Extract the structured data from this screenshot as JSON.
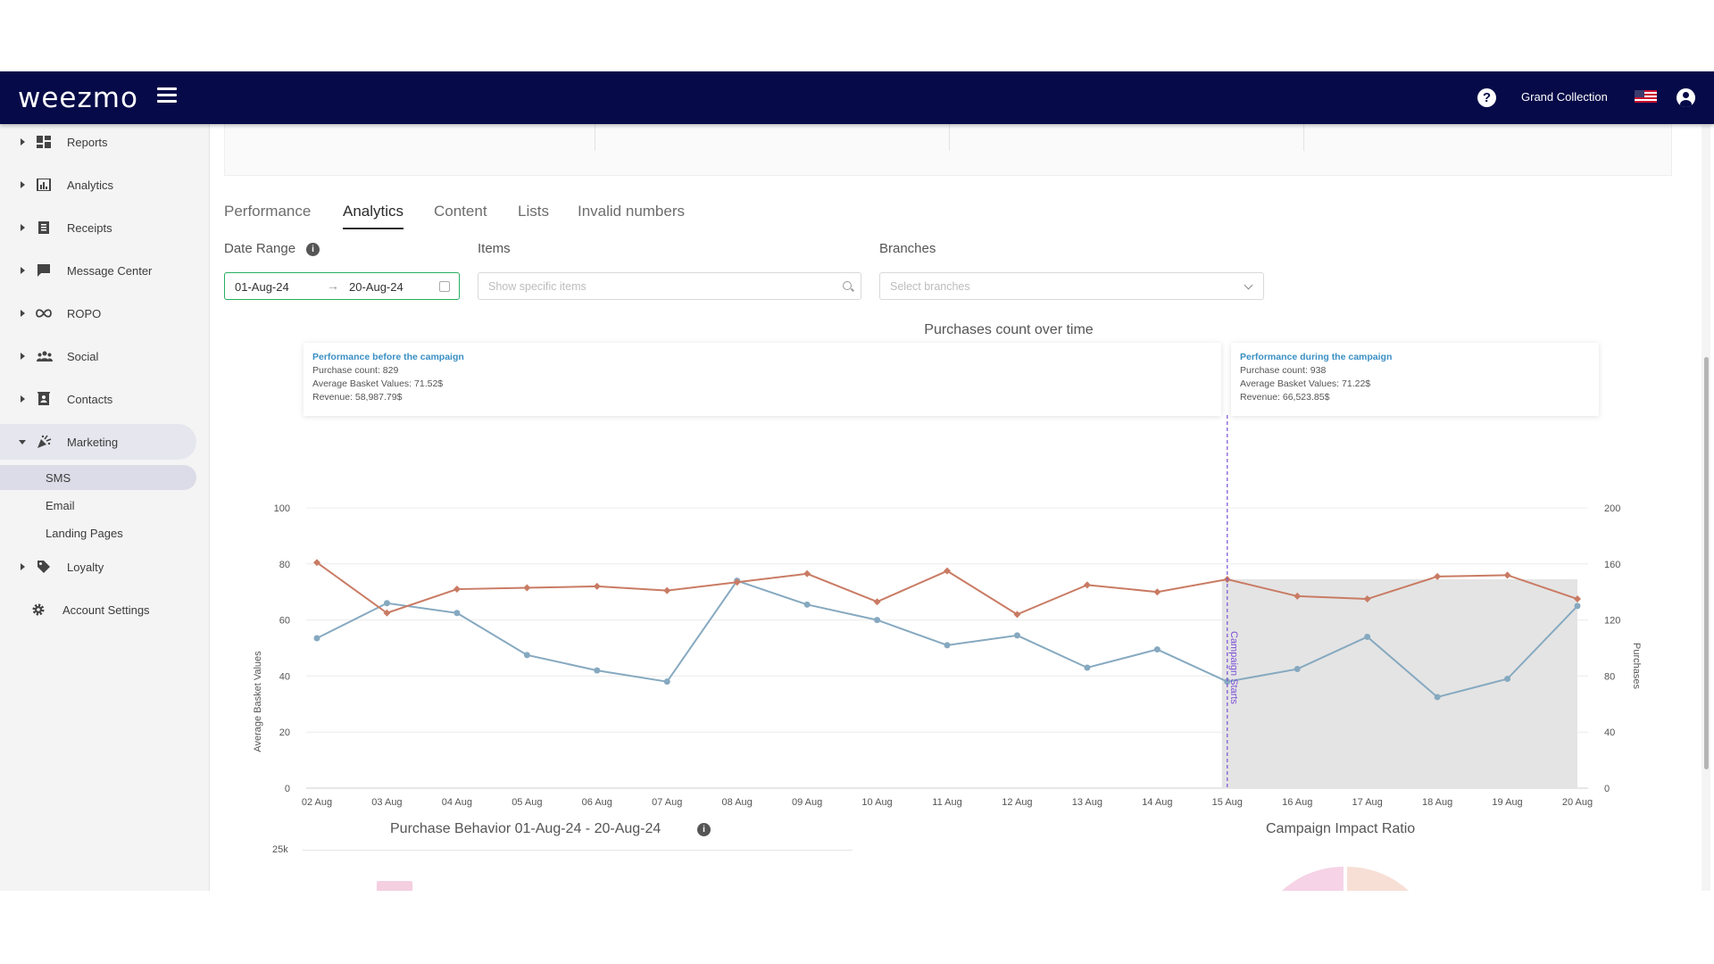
{
  "header": {
    "logo": "weezmo",
    "org_name": "Grand Collection",
    "colors": {
      "bar": "#060a48",
      "logo_accent": "#2ecc9a"
    }
  },
  "sidebar": {
    "items": [
      {
        "label": "Reports",
        "icon": "dashboard-icon"
      },
      {
        "label": "Analytics",
        "icon": "bar-chart-icon"
      },
      {
        "label": "Receipts",
        "icon": "receipt-icon"
      },
      {
        "label": "Message Center",
        "icon": "message-icon"
      },
      {
        "label": "ROPO",
        "icon": "infinity-icon"
      },
      {
        "label": "Social",
        "icon": "people-icon"
      },
      {
        "label": "Contacts",
        "icon": "contacts-icon"
      },
      {
        "label": "Marketing",
        "icon": "party-popper-icon",
        "expanded": true
      },
      {
        "label": "Loyalty",
        "icon": "tag-icon"
      }
    ],
    "marketing_sub": [
      {
        "label": "SMS",
        "active": true
      },
      {
        "label": "Email"
      },
      {
        "label": "Landing Pages"
      }
    ],
    "account_settings": "Account Settings"
  },
  "tabs": [
    {
      "label": "Performance"
    },
    {
      "label": "Analytics",
      "active": true
    },
    {
      "label": "Content"
    },
    {
      "label": "Lists"
    },
    {
      "label": "Invalid numbers"
    }
  ],
  "filters": {
    "date_range_label": "Date Range",
    "date_start": "01-Aug-24",
    "date_end": "20-Aug-24",
    "items_label": "Items",
    "items_placeholder": "Show specific items",
    "branches_label": "Branches",
    "branches_placeholder": "Select branches"
  },
  "performance_before": {
    "title": "Performance before the campaign",
    "purchase_count": "Purchase count: 829",
    "avg_basket": "Average Basket Values: 71.52$",
    "revenue": "Revenue: 58,987.79$"
  },
  "performance_during": {
    "title": "Performance during the campaign",
    "purchase_count": "Purchase count: 938",
    "avg_basket": "Average Basket Values: 71.22$",
    "revenue": "Revenue: 66,523.85$"
  },
  "chart_data": {
    "type": "line",
    "title": "Purchases count over time",
    "categories": [
      "02 Aug",
      "03 Aug",
      "04 Aug",
      "05 Aug",
      "06 Aug",
      "07 Aug",
      "08 Aug",
      "09 Aug",
      "10 Aug",
      "11 Aug",
      "12 Aug",
      "13 Aug",
      "14 Aug",
      "15 Aug",
      "16 Aug",
      "17 Aug",
      "18 Aug",
      "19 Aug",
      "20 Aug"
    ],
    "ylabel_left": "Average Basket Values",
    "ylabel_right": "Purchases",
    "ylim_left": [
      0,
      100
    ],
    "yticks_left": [
      0,
      20,
      40,
      60,
      80,
      100
    ],
    "ylim_right": [
      0,
      200
    ],
    "yticks_right": [
      0,
      40,
      80,
      120,
      160,
      200
    ],
    "series": [
      {
        "name": "Purchases",
        "axis": "right",
        "color": "#86a9c0",
        "values": [
          107,
          132,
          125,
          95,
          84,
          76,
          148,
          131,
          120,
          102,
          109,
          86,
          99,
          76,
          85,
          108,
          65,
          78,
          130
        ]
      },
      {
        "name": "Average Basket Values",
        "axis": "left",
        "color": "#c97b64",
        "values": [
          80.5,
          62.5,
          71,
          71.5,
          72,
          70.5,
          73.5,
          76.5,
          66.5,
          77.5,
          62,
          72.5,
          70,
          74.5,
          68.5,
          67.5,
          75.5,
          76,
          67.5
        ]
      }
    ],
    "campaign_marker": {
      "category": "15 Aug",
      "label": "Campaign Starts",
      "color": "#7b4fd6"
    },
    "campaign_shade_color": "#e4e4e4",
    "legend": "bottom-center",
    "grid": true
  },
  "bottom": {
    "behavior_title": "Purchase Behavior 01-Aug-24 - 20-Aug-24",
    "behavior_tick": "25k",
    "impact_title": "Campaign Impact Ratio"
  }
}
